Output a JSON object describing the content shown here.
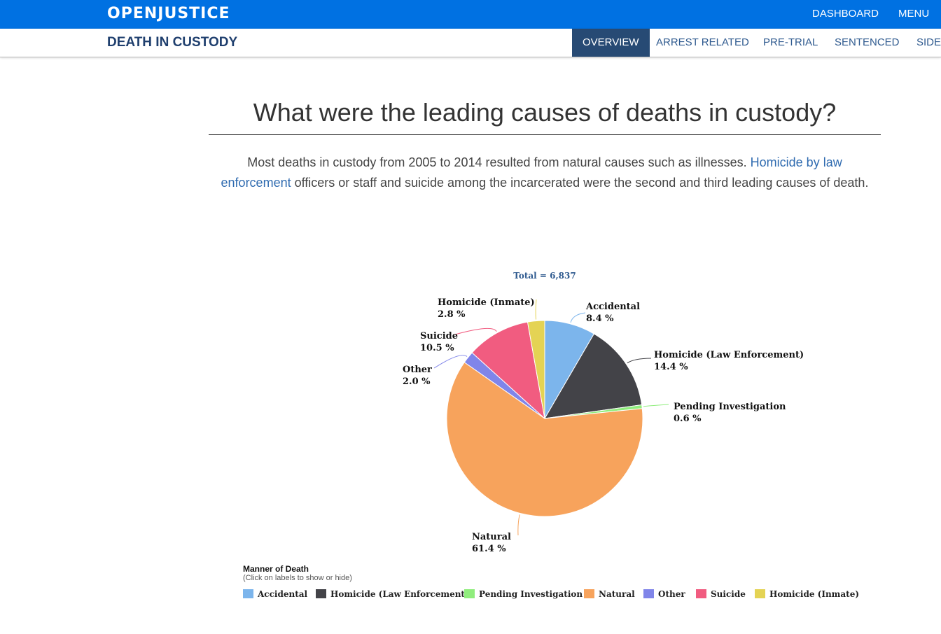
{
  "header": {
    "logo": "OPENJUSTICE",
    "links": [
      "DASHBOARD",
      "MENU"
    ]
  },
  "subnav": {
    "title": "DEATH IN CUSTODY",
    "tabs": [
      "OVERVIEW",
      "ARREST RELATED",
      "PRE-TRIAL",
      "SENTENCED",
      "SIDE-"
    ]
  },
  "main": {
    "heading": "What were the leading causes of deaths in custody?",
    "lede_before": "Most deaths in custody from 2005 to 2014 resulted from natural causes such as illnesses. ",
    "lede_link": "Homicide by law enforcement",
    "lede_after": " officers or staff and suicide among the incarcerated were the second and third leading causes of death."
  },
  "chart_data": {
    "type": "pie",
    "title": "Total = 6,837",
    "legend_title": "Manner of Death",
    "legend_subtitle": "(Click on labels to show or hide)",
    "legend_placement": "bottom",
    "slices": [
      {
        "name": "Accidental",
        "value": 8.4,
        "label": "8.4 %",
        "color": "#7cb5ec"
      },
      {
        "name": "Homicide (Law Enforcement)",
        "value": 14.4,
        "label": "14.4 %",
        "color": "#434348"
      },
      {
        "name": "Pending Investigation",
        "value": 0.6,
        "label": "0.6 %",
        "color": "#90ed7d"
      },
      {
        "name": "Natural",
        "value": 61.4,
        "label": "61.4 %",
        "color": "#f7a35c"
      },
      {
        "name": "Other",
        "value": 2.0,
        "label": "2.0 %",
        "color": "#8085e9"
      },
      {
        "name": "Suicide",
        "value": 10.5,
        "label": "10.5 %",
        "color": "#f15c80"
      },
      {
        "name": "Homicide (Inmate)",
        "value": 2.8,
        "label": "2.8 %",
        "color": "#e4d354"
      }
    ]
  }
}
